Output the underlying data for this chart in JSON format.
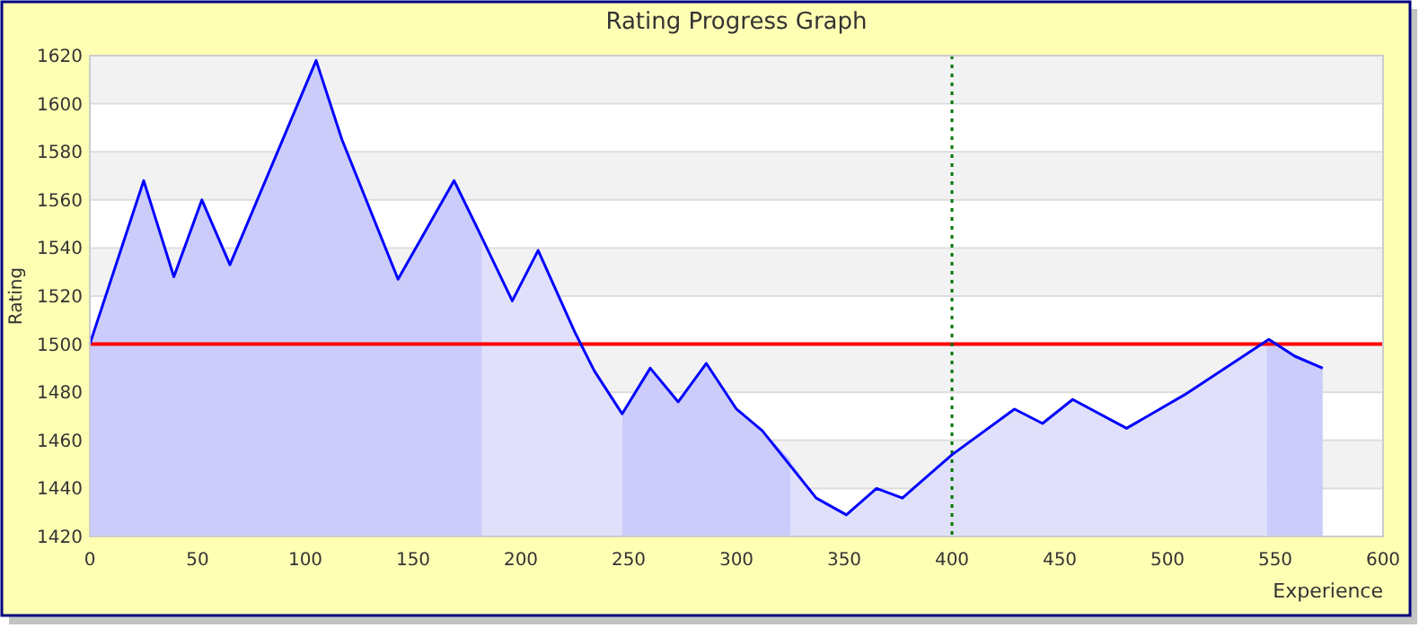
{
  "chart_data": {
    "type": "line",
    "title": "Rating Progress Graph",
    "xlabel": "Experience",
    "ylabel": "Rating",
    "xlim": [
      0,
      600
    ],
    "xticks": [
      0,
      50,
      100,
      150,
      200,
      250,
      300,
      350,
      400,
      450,
      500,
      550,
      600
    ],
    "ylim": [
      1420,
      1620
    ],
    "yticks": [
      1420,
      1440,
      1460,
      1480,
      1500,
      1520,
      1540,
      1560,
      1580,
      1600,
      1620
    ],
    "grid": "y",
    "marker": "none",
    "line_style": "solid",
    "ref_lines": [
      {
        "axis": "y",
        "value": 1500,
        "color": "#ff0000",
        "line_style": "solid"
      },
      {
        "axis": "x",
        "value": 400,
        "color": "#007700",
        "line_style": "dotted"
      }
    ],
    "series": [
      {
        "type": "area",
        "color": "#ccccfb",
        "x": [
          0,
          25,
          39,
          52,
          65,
          105,
          117,
          143,
          169,
          181,
          182
        ],
        "values": [
          1500,
          1568,
          1528,
          1560,
          1533,
          1618,
          1585,
          1527,
          1568,
          1546,
          1545
        ]
      },
      {
        "type": "area",
        "color": "#e0e0fb",
        "x": [
          182,
          196,
          208,
          225,
          234,
          247
        ],
        "values": [
          1545,
          1518,
          1539,
          1505,
          1489,
          1471
        ]
      },
      {
        "type": "area",
        "color": "#ccccfb",
        "x": [
          247,
          260,
          273,
          286,
          300,
          312,
          325
        ],
        "values": [
          1471,
          1490,
          1476,
          1492,
          1473,
          1464,
          1452
        ]
      },
      {
        "type": "area",
        "color": "#e0e0fb",
        "x": [
          325,
          337,
          351,
          365,
          377,
          400,
          429,
          442,
          456,
          481,
          508,
          546
        ],
        "values": [
          1452,
          1436,
          1429,
          1440,
          1436,
          1454,
          1473,
          1467,
          1477,
          1465,
          1479,
          1501
        ]
      },
      {
        "type": "area",
        "color": "#ccccfb",
        "x": [
          546,
          547,
          559,
          572
        ],
        "values": [
          1501,
          1502,
          1495,
          1490
        ]
      },
      {
        "color": "#0000ff",
        "x": [
          0,
          25,
          39,
          52,
          65,
          105,
          117,
          143,
          169,
          181,
          196,
          208,
          225,
          234,
          247,
          260,
          273,
          286,
          300,
          312,
          337,
          351,
          365,
          377,
          400,
          429,
          442,
          456,
          481,
          508,
          547,
          559,
          572
        ],
        "values": [
          1500,
          1568,
          1528,
          1560,
          1533,
          1618,
          1585,
          1527,
          1568,
          1546,
          1518,
          1539,
          1505,
          1489,
          1471,
          1490,
          1476,
          1492,
          1473,
          1464,
          1436,
          1429,
          1440,
          1436,
          1454,
          1473,
          1467,
          1477,
          1465,
          1479,
          1502,
          1495,
          1490
        ]
      }
    ]
  }
}
